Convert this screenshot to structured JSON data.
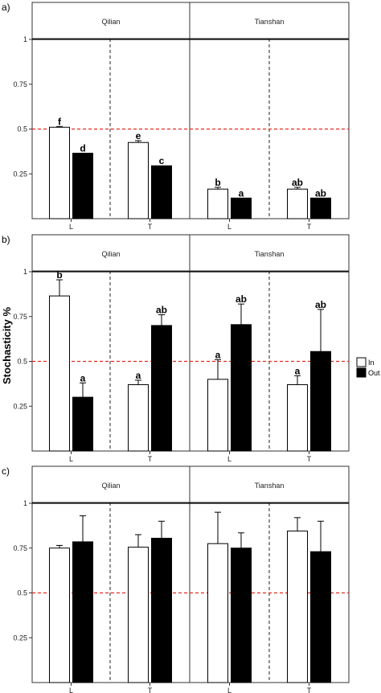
{
  "figure": {
    "ylabel": "Stochasticity %",
    "legend": {
      "items": [
        "In",
        "Out"
      ],
      "colors": [
        "#ffffff",
        "#000000"
      ],
      "placement": "right"
    },
    "colors": {
      "in_fill": "#ffffff",
      "out_fill": "#000000",
      "threshold_line": "#e8291c",
      "frame": "#333333"
    }
  },
  "chart_data": [
    {
      "type": "bar",
      "panel_label": "a)",
      "facets": [
        "Qilian",
        "Tianshan"
      ],
      "categories": [
        "L",
        "T"
      ],
      "yticks": [
        "0.25",
        "0.5",
        "0.75",
        "1"
      ],
      "ylim": [
        0,
        1
      ],
      "reference_line": 0.5,
      "series": [
        {
          "name": "In",
          "values": [
            [
              0.51,
              0.425
            ],
            [
              0.165,
              0.165
            ]
          ],
          "errors": [
            [
              0.004,
              0.01
            ],
            [
              0.01,
              0.01
            ]
          ],
          "letters": [
            [
              "f",
              "e"
            ],
            [
              "b",
              "ab"
            ]
          ]
        },
        {
          "name": "Out",
          "values": [
            [
              0.365,
              0.295
            ],
            [
              0.115,
              0.115
            ]
          ],
          "errors": [
            [
              0,
              0
            ],
            [
              0,
              0
            ]
          ],
          "letters": [
            [
              "d",
              "c"
            ],
            [
              "a",
              "ab"
            ]
          ]
        }
      ]
    },
    {
      "type": "bar",
      "panel_label": "b)",
      "facets": [
        "Qilian",
        "Tianshan"
      ],
      "categories": [
        "L",
        "T"
      ],
      "yticks": [
        "0.25",
        "0.5",
        "0.75",
        "1"
      ],
      "ylim": [
        0,
        1
      ],
      "reference_line": 0.5,
      "series": [
        {
          "name": "In",
          "values": [
            [
              0.865,
              0.37
            ],
            [
              0.4,
              0.37
            ]
          ],
          "errors": [
            [
              0.09,
              0.025
            ],
            [
              0.11,
              0.05
            ]
          ],
          "letters": [
            [
              "b",
              "a"
            ],
            [
              "a",
              "a"
            ]
          ]
        },
        {
          "name": "Out",
          "values": [
            [
              0.3,
              0.7
            ],
            [
              0.705,
              0.555
            ]
          ],
          "errors": [
            [
              0.08,
              0.06
            ],
            [
              0.115,
              0.235
            ]
          ],
          "letters": [
            [
              "a",
              "ab"
            ],
            [
              "ab",
              "ab"
            ]
          ]
        }
      ]
    },
    {
      "type": "bar",
      "panel_label": "c)",
      "facets": [
        "Qilian",
        "Tianshan"
      ],
      "categories": [
        "L",
        "T"
      ],
      "yticks": [
        "0.25",
        "0.5",
        "0.75",
        "1"
      ],
      "ylim": [
        0,
        1
      ],
      "reference_line": 0.5,
      "series": [
        {
          "name": "In",
          "values": [
            [
              0.75,
              0.755
            ],
            [
              0.775,
              0.845
            ]
          ],
          "errors": [
            [
              0.015,
              0.07
            ],
            [
              0.175,
              0.075
            ]
          ],
          "letters": [
            [
              "",
              ""
            ],
            [
              "",
              ""
            ]
          ]
        },
        {
          "name": "Out",
          "values": [
            [
              0.785,
              0.805
            ],
            [
              0.75,
              0.73
            ]
          ],
          "errors": [
            [
              0.145,
              0.095
            ],
            [
              0.085,
              0.17
            ]
          ],
          "letters": [
            [
              "",
              ""
            ],
            [
              "",
              ""
            ]
          ]
        }
      ]
    }
  ]
}
